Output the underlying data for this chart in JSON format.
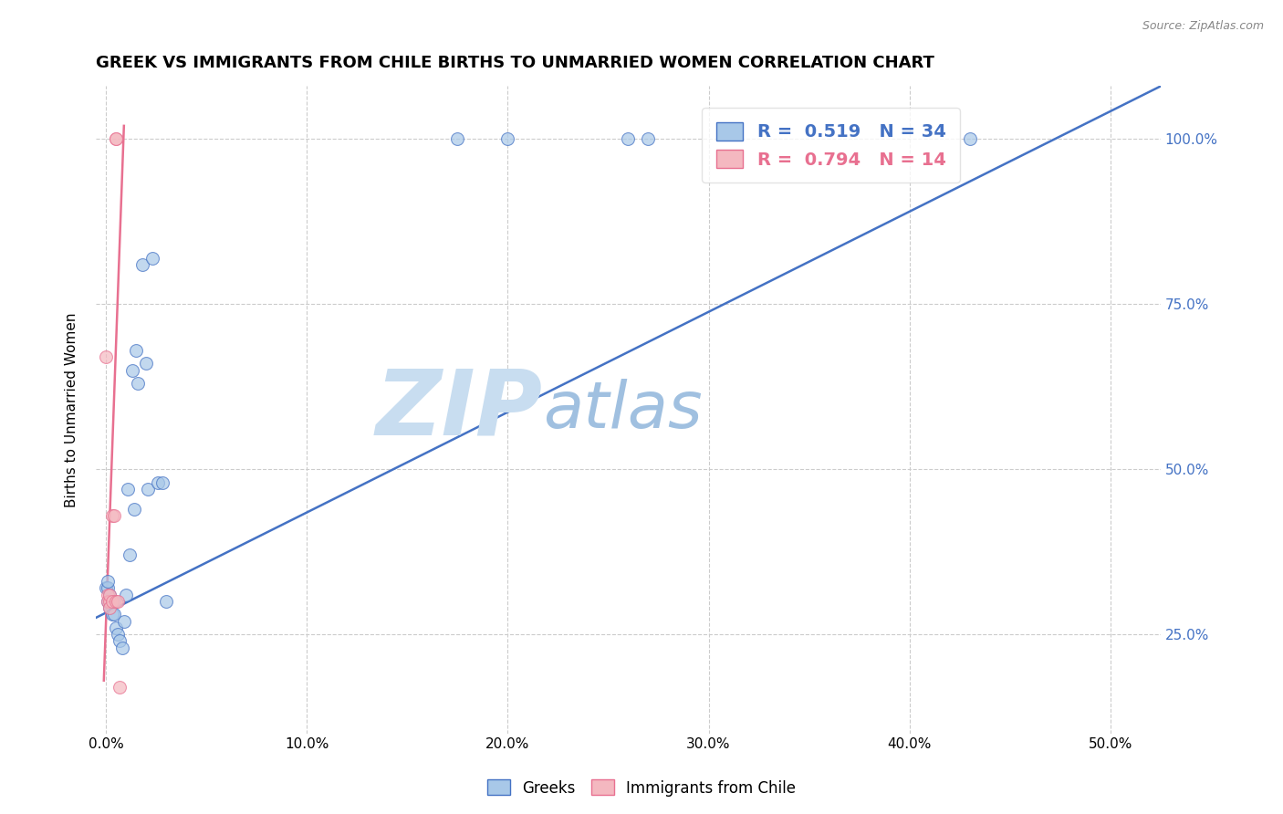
{
  "title": "GREEK VS IMMIGRANTS FROM CHILE BIRTHS TO UNMARRIED WOMEN CORRELATION CHART",
  "source": "Source: ZipAtlas.com",
  "ylabel": "Births to Unmarried Women",
  "xlabel_ticks": [
    "0.0%",
    "10.0%",
    "20.0%",
    "30.0%",
    "40.0%",
    "50.0%"
  ],
  "xlabel_vals": [
    0.0,
    0.1,
    0.2,
    0.3,
    0.4,
    0.5
  ],
  "ylabel_ticks": [
    "25.0%",
    "50.0%",
    "75.0%",
    "100.0%"
  ],
  "ylabel_vals": [
    0.25,
    0.5,
    0.75,
    1.0
  ],
  "xlim": [
    -0.005,
    0.525
  ],
  "ylim": [
    0.1,
    1.08
  ],
  "legend1_r": "0.519",
  "legend1_n": "34",
  "legend2_r": "0.794",
  "legend2_n": "14",
  "legend_label_blue": "Greeks",
  "legend_label_pink": "Immigrants from Chile",
  "blue_scatter_x": [
    0.0,
    0.001,
    0.001,
    0.001,
    0.002,
    0.002,
    0.003,
    0.003,
    0.004,
    0.004,
    0.005,
    0.006,
    0.007,
    0.008,
    0.009,
    0.01,
    0.011,
    0.012,
    0.013,
    0.014,
    0.015,
    0.016,
    0.018,
    0.02,
    0.021,
    0.023,
    0.026,
    0.028,
    0.03,
    0.175,
    0.2,
    0.26,
    0.27,
    0.43
  ],
  "blue_scatter_y": [
    0.32,
    0.3,
    0.32,
    0.33,
    0.29,
    0.31,
    0.28,
    0.3,
    0.28,
    0.3,
    0.26,
    0.25,
    0.24,
    0.23,
    0.27,
    0.31,
    0.47,
    0.37,
    0.65,
    0.44,
    0.68,
    0.63,
    0.81,
    0.66,
    0.47,
    0.82,
    0.48,
    0.48,
    0.3,
    1.0,
    1.0,
    1.0,
    1.0,
    1.0
  ],
  "pink_scatter_x": [
    0.0,
    0.001,
    0.001,
    0.002,
    0.002,
    0.002,
    0.003,
    0.003,
    0.004,
    0.005,
    0.005,
    0.005,
    0.006,
    0.007
  ],
  "pink_scatter_y": [
    0.67,
    0.31,
    0.3,
    0.3,
    0.31,
    0.29,
    0.3,
    0.43,
    0.43,
    1.0,
    1.0,
    0.3,
    0.3,
    0.17
  ],
  "blue_line_x": [
    -0.005,
    0.525
  ],
  "blue_line_y": [
    0.275,
    1.08
  ],
  "pink_line_x": [
    -0.001,
    0.009
  ],
  "pink_line_y": [
    0.18,
    1.02
  ],
  "blue_color": "#a8c8e8",
  "pink_color": "#f4b8c0",
  "blue_line_color": "#4472c4",
  "pink_line_color": "#e87090",
  "scatter_alpha": 0.7,
  "scatter_size": 100,
  "watermark_zip": "ZIP",
  "watermark_atlas": "atlas",
  "watermark_color_zip": "#c8ddf0",
  "watermark_color_atlas": "#a0c0e0",
  "background_color": "#ffffff",
  "grid_color": "#cccccc",
  "right_tick_color": "#4472c4",
  "title_fontsize": 13,
  "axis_label_fontsize": 11,
  "tick_fontsize": 11
}
